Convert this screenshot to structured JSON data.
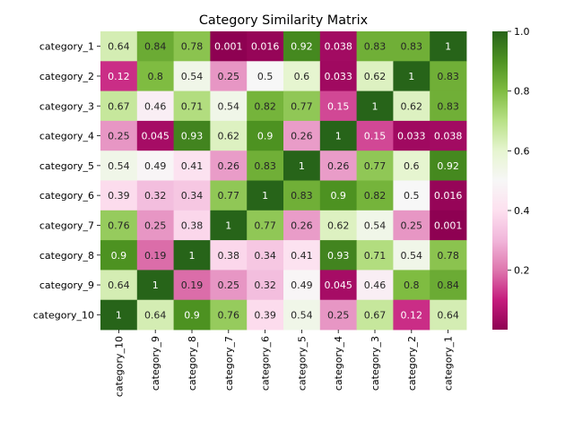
{
  "chart_data": {
    "type": "heatmap",
    "title": "Category Similarity Matrix",
    "row_labels": [
      "category_1",
      "category_2",
      "category_3",
      "category_4",
      "category_5",
      "category_6",
      "category_7",
      "category_8",
      "category_9",
      "category_10"
    ],
    "col_labels": [
      "category_10",
      "category_9",
      "category_8",
      "category_7",
      "category_6",
      "category_5",
      "category_4",
      "category_3",
      "category_2",
      "category_1"
    ],
    "values": [
      [
        0.64,
        0.84,
        0.78,
        0.001,
        0.016,
        0.92,
        0.038,
        0.83,
        0.83,
        1
      ],
      [
        0.12,
        0.8,
        0.54,
        0.25,
        0.5,
        0.6,
        0.033,
        0.62,
        1,
        0.83
      ],
      [
        0.67,
        0.46,
        0.71,
        0.54,
        0.82,
        0.77,
        0.15,
        1,
        0.62,
        0.83
      ],
      [
        0.25,
        0.045,
        0.93,
        0.62,
        0.9,
        0.26,
        1,
        0.15,
        0.033,
        0.038
      ],
      [
        0.54,
        0.49,
        0.41,
        0.26,
        0.83,
        1,
        0.26,
        0.77,
        0.6,
        0.92
      ],
      [
        0.39,
        0.32,
        0.34,
        0.77,
        1,
        0.83,
        0.9,
        0.82,
        0.5,
        0.016
      ],
      [
        0.76,
        0.25,
        0.38,
        1,
        0.77,
        0.26,
        0.62,
        0.54,
        0.25,
        0.001
      ],
      [
        0.9,
        0.19,
        1,
        0.38,
        0.34,
        0.41,
        0.93,
        0.71,
        0.54,
        0.78
      ],
      [
        0.64,
        1,
        0.19,
        0.25,
        0.32,
        0.49,
        0.045,
        0.46,
        0.8,
        0.84
      ],
      [
        1,
        0.64,
        0.9,
        0.76,
        0.39,
        0.54,
        0.25,
        0.67,
        0.12,
        0.64
      ]
    ],
    "colormap": "PiYG",
    "vmin": 0.001,
    "vmax": 1.0,
    "colorbar_ticks": [
      "0.2",
      "0.4",
      "0.6",
      "0.8",
      "1.0"
    ],
    "colorbar_tick_values": [
      0.2,
      0.4,
      0.6,
      0.8,
      1.0
    ],
    "xlabel": "",
    "ylabel": "",
    "annotations": true
  }
}
